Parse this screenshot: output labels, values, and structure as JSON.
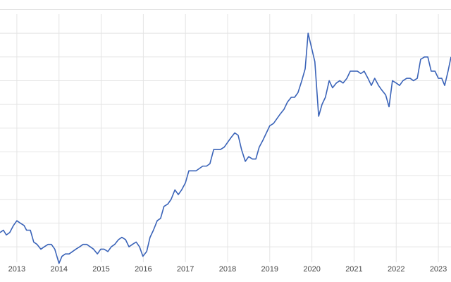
{
  "chart_data": {
    "type": "line",
    "x": [
      2012.6,
      2012.68,
      2012.75,
      2012.83,
      2012.92,
      2013.0,
      2013.08,
      2013.17,
      2013.23,
      2013.32,
      2013.4,
      2013.48,
      2013.57,
      2013.65,
      2013.74,
      2013.82,
      2013.9,
      2013.95,
      2014.0,
      2014.07,
      2014.15,
      2014.24,
      2014.32,
      2014.4,
      2014.49,
      2014.57,
      2014.66,
      2014.74,
      2014.82,
      2014.91,
      2014.99,
      2015.07,
      2015.16,
      2015.24,
      2015.32,
      2015.41,
      2015.49,
      2015.58,
      2015.66,
      2015.74,
      2015.83,
      2015.91,
      2015.99,
      2016.08,
      2016.16,
      2016.24,
      2016.33,
      2016.41,
      2016.49,
      2016.58,
      2016.66,
      2016.75,
      2016.83,
      2016.91,
      2017.0,
      2017.08,
      2017.16,
      2017.25,
      2017.33,
      2017.41,
      2017.5,
      2017.58,
      2017.67,
      2017.75,
      2017.83,
      2017.92,
      2018.0,
      2018.08,
      2018.17,
      2018.25,
      2018.33,
      2018.42,
      2018.5,
      2018.59,
      2018.67,
      2018.75,
      2018.84,
      2018.92,
      2019.0,
      2019.09,
      2019.17,
      2019.25,
      2019.34,
      2019.42,
      2019.51,
      2019.59,
      2019.67,
      2019.76,
      2019.84,
      2019.91,
      2019.99,
      2020.07,
      2020.16,
      2020.24,
      2020.32,
      2020.41,
      2020.49,
      2020.58,
      2020.66,
      2020.74,
      2020.83,
      2020.91,
      2020.99,
      2021.08,
      2021.16,
      2021.24,
      2021.33,
      2021.41,
      2021.49,
      2021.58,
      2021.66,
      2021.75,
      2021.83,
      2021.91,
      2022.0,
      2022.08,
      2022.16,
      2022.25,
      2022.33,
      2022.41,
      2022.5,
      2022.58,
      2022.67,
      2022.75,
      2022.83,
      2022.92,
      2023.0,
      2023.08,
      2023.15,
      2023.23,
      2023.3
    ],
    "series": [
      {
        "color": "#3a63b8",
        "values": [
          6,
          7,
          5,
          6,
          9,
          11,
          10,
          9,
          7,
          7,
          2,
          1,
          -1,
          0,
          1,
          1,
          -1,
          -4,
          -7,
          -4,
          -3,
          -3,
          -2,
          -1,
          0,
          1,
          1,
          0,
          -1,
          -3,
          -1,
          -1,
          -2,
          0,
          1,
          3,
          4,
          3,
          0,
          1,
          2,
          0,
          -4,
          -2,
          4,
          7,
          11,
          12,
          17,
          18,
          20,
          24,
          22,
          24,
          27,
          32,
          32,
          32,
          33,
          34,
          34,
          35,
          41,
          41,
          41,
          42,
          44,
          46,
          48,
          47,
          41,
          36,
          38,
          37,
          37,
          42,
          45,
          48,
          51,
          52,
          54,
          56,
          58,
          61,
          63,
          63,
          65,
          70,
          75,
          90,
          84,
          78,
          55,
          60,
          63,
          70,
          67,
          69,
          70,
          69,
          71,
          74,
          74,
          74,
          73,
          74,
          71,
          68,
          71,
          68,
          66,
          64,
          59,
          70,
          69,
          68,
          70,
          71,
          71,
          70,
          71,
          79,
          80,
          80,
          74,
          74,
          71,
          71,
          68,
          74,
          80
        ]
      }
    ],
    "xlim": [
      2012.6,
      2023.3
    ],
    "xticks": [
      2013,
      2014,
      2015,
      2016,
      2017,
      2018,
      2019,
      2020,
      2021,
      2022,
      2023
    ],
    "ylim": [
      -8,
      104
    ],
    "yticks": [
      0,
      10,
      20,
      30,
      40,
      50,
      60,
      70,
      80,
      90,
      100
    ],
    "grid": true
  }
}
